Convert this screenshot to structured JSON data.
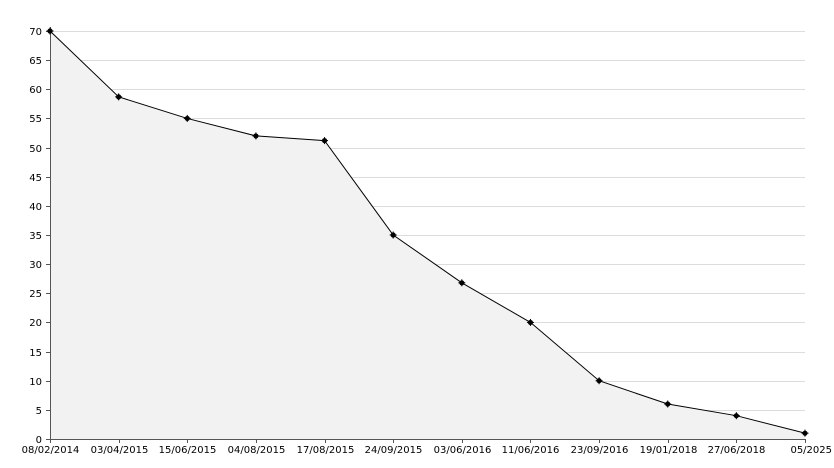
{
  "chart_data": {
    "type": "area",
    "title": "",
    "xlabel": "",
    "ylabel": "",
    "ylim": [
      0,
      70
    ],
    "yticks": [
      0,
      5,
      10,
      15,
      20,
      25,
      30,
      35,
      40,
      45,
      50,
      55,
      60,
      65,
      70
    ],
    "grid": true,
    "legend": "none",
    "categories": [
      "08/02/2014",
      "03/04/2015",
      "15/06/2015",
      "04/08/2015",
      "17/08/2015",
      "24/09/2015",
      "03/06/2016",
      "11/06/2016",
      "23/09/2016",
      "19/01/2018",
      "27/06/2018",
      "05/2025"
    ],
    "values": [
      70,
      58.7,
      55,
      52,
      51.2,
      35,
      26.8,
      20,
      10,
      6,
      4,
      1
    ],
    "colors": {
      "line": "#000000",
      "area": "#f2f2f2",
      "grid": "#dcdcdc",
      "axis": "#555555"
    }
  }
}
